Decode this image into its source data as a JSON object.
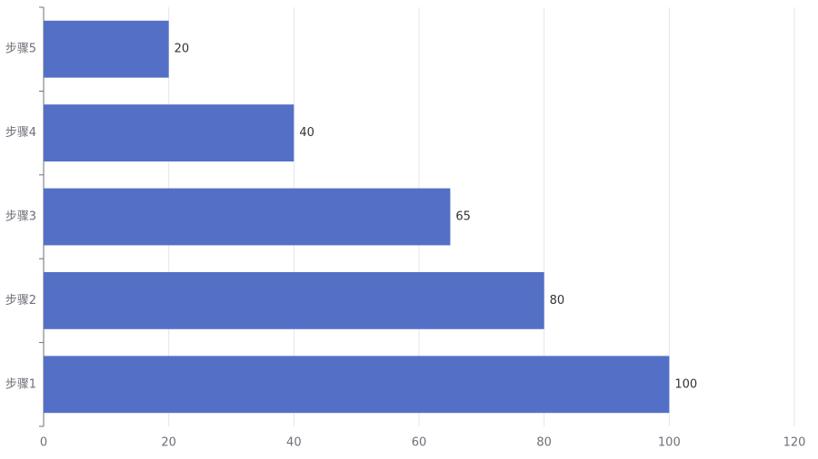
{
  "chart_data": {
    "type": "bar",
    "orientation": "horizontal",
    "categories": [
      "步骤1",
      "步骤2",
      "步骤3",
      "步骤4",
      "步骤5"
    ],
    "values": [
      100,
      80,
      65,
      40,
      20
    ],
    "color": "#5470c6",
    "xlim": [
      0,
      120
    ],
    "xticks": [
      0,
      20,
      40,
      60,
      80,
      100,
      120
    ],
    "grid": true
  }
}
